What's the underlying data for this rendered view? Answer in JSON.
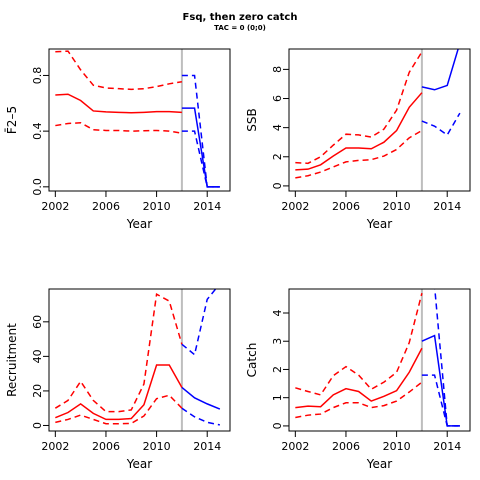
{
  "figure": {
    "title": "Fsq, then zero catch",
    "subtitle": "TAC = 0 (0;0)"
  },
  "colors": {
    "historical": "#ff0000",
    "projection": "#0000ff",
    "divider": "#bebebe"
  },
  "chart_data": [
    {
      "type": "line",
      "id": "fbar",
      "xlabel": "Year",
      "ylabel": "F̄2–5",
      "xlim": [
        2001.5,
        2015.8
      ],
      "ylim": [
        -0.03,
        0.99
      ],
      "xticks": [
        2002,
        2006,
        2010,
        2014
      ],
      "yticks": [
        0.0,
        0.4,
        0.8
      ],
      "ytick_labels": [
        "0.0",
        "0.4",
        "0.8"
      ],
      "divider_x": 2012,
      "series": [
        {
          "role": "historical-median",
          "x": [
            2002,
            2003,
            2004,
            2005,
            2006,
            2007,
            2008,
            2009,
            2010,
            2011,
            2012
          ],
          "values": [
            0.66,
            0.665,
            0.62,
            0.545,
            0.538,
            0.535,
            0.532,
            0.535,
            0.54,
            0.54,
            0.535
          ]
        },
        {
          "role": "historical-upper",
          "x": [
            2002,
            2003,
            2004,
            2005,
            2006,
            2007,
            2008,
            2009,
            2010,
            2011,
            2012
          ],
          "values": [
            0.97,
            0.975,
            0.84,
            0.73,
            0.71,
            0.705,
            0.7,
            0.705,
            0.72,
            0.74,
            0.755
          ]
        },
        {
          "role": "historical-lower",
          "x": [
            2002,
            2003,
            2004,
            2005,
            2006,
            2007,
            2008,
            2009,
            2010,
            2011,
            2012
          ],
          "values": [
            0.44,
            0.455,
            0.46,
            0.41,
            0.405,
            0.405,
            0.4,
            0.403,
            0.405,
            0.4,
            0.385
          ]
        },
        {
          "role": "projection-median",
          "x": [
            2012,
            2013,
            2014,
            2015
          ],
          "values": [
            0.565,
            0.565,
            0.0,
            0.0
          ]
        },
        {
          "role": "projection-upper",
          "x": [
            2012,
            2013,
            2014,
            2015
          ],
          "values": [
            0.8,
            0.8,
            0.0,
            0.0
          ]
        },
        {
          "role": "projection-lower",
          "x": [
            2012,
            2013,
            2014,
            2015
          ],
          "values": [
            0.4,
            0.4,
            0.0,
            0.0
          ]
        }
      ]
    },
    {
      "type": "line",
      "id": "ssb",
      "xlabel": "Year",
      "ylabel": "SSB",
      "xlim": [
        2001.5,
        2015.8
      ],
      "ylim": [
        -0.35,
        9.4
      ],
      "xticks": [
        2002,
        2006,
        2010,
        2014
      ],
      "yticks": [
        0,
        2,
        4,
        6,
        8
      ],
      "ytick_labels": [
        "0",
        "2",
        "4",
        "6",
        "8"
      ],
      "divider_x": 2012,
      "series": [
        {
          "role": "historical-median",
          "x": [
            2002,
            2003,
            2004,
            2005,
            2006,
            2007,
            2008,
            2009,
            2010,
            2011,
            2012
          ],
          "values": [
            1.1,
            1.15,
            1.45,
            2.05,
            2.6,
            2.6,
            2.55,
            3.0,
            3.8,
            5.4,
            6.4
          ]
        },
        {
          "role": "historical-upper",
          "x": [
            2002,
            2003,
            2004,
            2005,
            2006,
            2007,
            2008,
            2009,
            2010,
            2011,
            2012
          ],
          "values": [
            1.6,
            1.55,
            2.0,
            2.8,
            3.55,
            3.5,
            3.35,
            3.9,
            5.2,
            7.8,
            9.2
          ]
        },
        {
          "role": "historical-lower",
          "x": [
            2002,
            2003,
            2004,
            2005,
            2006,
            2007,
            2008,
            2009,
            2010,
            2011,
            2012
          ],
          "values": [
            0.55,
            0.7,
            0.95,
            1.3,
            1.65,
            1.75,
            1.8,
            2.05,
            2.5,
            3.3,
            3.8
          ]
        },
        {
          "role": "projection-median",
          "x": [
            2012,
            2013,
            2014,
            2015
          ],
          "values": [
            6.8,
            6.6,
            6.9,
            9.8
          ]
        },
        {
          "role": "projection-upper",
          "x": [
            2012,
            2013,
            2014,
            2015
          ],
          "values": [
            9.8,
            9.8,
            9.8,
            9.8
          ]
        },
        {
          "role": "projection-lower",
          "x": [
            2012,
            2013,
            2014,
            2015
          ],
          "values": [
            4.45,
            4.1,
            3.5,
            5.0
          ]
        }
      ]
    },
    {
      "type": "line",
      "id": "recruitment",
      "xlabel": "Year",
      "ylabel": "Recruitment",
      "xlim": [
        2001.5,
        2015.8
      ],
      "ylim": [
        -3.2,
        79
      ],
      "xticks": [
        2002,
        2006,
        2010,
        2014
      ],
      "yticks": [
        0,
        20,
        40,
        60
      ],
      "ytick_labels": [
        "0",
        "20",
        "40",
        "60"
      ],
      "divider_x": 2012,
      "series": [
        {
          "role": "historical-median",
          "x": [
            2002,
            2003,
            2004,
            2005,
            2006,
            2007,
            2008,
            2009,
            2010,
            2011,
            2012
          ],
          "values": [
            4.5,
            7.5,
            12.5,
            7.0,
            3.5,
            3.5,
            4.0,
            12.0,
            35.0,
            35.0,
            22.0
          ]
        },
        {
          "role": "historical-upper",
          "x": [
            2002,
            2003,
            2004,
            2005,
            2006,
            2007,
            2008,
            2009,
            2010,
            2011,
            2012
          ],
          "values": [
            10.0,
            14.5,
            25.5,
            14.5,
            8.0,
            8.0,
            9.0,
            24.0,
            76.0,
            72.0,
            47.0
          ]
        },
        {
          "role": "historical-lower",
          "x": [
            2002,
            2003,
            2004,
            2005,
            2006,
            2007,
            2008,
            2009,
            2010,
            2011,
            2012
          ],
          "values": [
            1.8,
            3.5,
            6.0,
            3.5,
            1.0,
            1.0,
            1.2,
            5.5,
            15.5,
            17.5,
            10.0
          ]
        },
        {
          "role": "projection-median",
          "x": [
            2012,
            2013,
            2014,
            2015
          ],
          "values": [
            22.0,
            16.0,
            12.5,
            9.5
          ]
        },
        {
          "role": "projection-upper",
          "x": [
            2012,
            2013,
            2014,
            2015
          ],
          "values": [
            47.0,
            41.0,
            73.0,
            82.0
          ]
        },
        {
          "role": "projection-lower",
          "x": [
            2012,
            2013,
            2014,
            2015
          ],
          "values": [
            10.0,
            5.0,
            1.8,
            0.3
          ]
        }
      ]
    },
    {
      "type": "line",
      "id": "catch",
      "xlabel": "Year",
      "ylabel": "Catch",
      "xlim": [
        2001.5,
        2015.8
      ],
      "ylim": [
        -0.18,
        4.85
      ],
      "xticks": [
        2002,
        2006,
        2010,
        2014
      ],
      "yticks": [
        0,
        1,
        2,
        3,
        4
      ],
      "ytick_labels": [
        "0",
        "1",
        "2",
        "3",
        "4"
      ],
      "divider_x": 2012,
      "series": [
        {
          "role": "historical-median",
          "x": [
            2002,
            2003,
            2004,
            2005,
            2006,
            2007,
            2008,
            2009,
            2010,
            2011,
            2012
          ],
          "values": [
            0.65,
            0.7,
            0.68,
            1.1,
            1.32,
            1.22,
            0.88,
            1.05,
            1.25,
            1.9,
            2.75
          ]
        },
        {
          "role": "historical-upper",
          "x": [
            2002,
            2003,
            2004,
            2005,
            2006,
            2007,
            2008,
            2009,
            2010,
            2011,
            2012
          ],
          "values": [
            1.35,
            1.22,
            1.1,
            1.78,
            2.1,
            1.8,
            1.3,
            1.55,
            1.9,
            2.95,
            4.7
          ]
        },
        {
          "role": "historical-lower",
          "x": [
            2002,
            2003,
            2004,
            2005,
            2006,
            2007,
            2008,
            2009,
            2010,
            2011,
            2012
          ],
          "values": [
            0.3,
            0.38,
            0.42,
            0.65,
            0.82,
            0.82,
            0.65,
            0.72,
            0.88,
            1.2,
            1.55
          ]
        },
        {
          "role": "projection-median",
          "x": [
            2012,
            2013,
            2014,
            2015
          ],
          "values": [
            3.0,
            3.2,
            0.0,
            0.0
          ]
        },
        {
          "role": "projection-upper",
          "x": [
            2012,
            2013,
            2014,
            2015
          ],
          "values": [
            4.95,
            4.95,
            0.0,
            0.0
          ]
        },
        {
          "role": "projection-lower",
          "x": [
            2012,
            2013,
            2014,
            2015
          ],
          "values": [
            1.8,
            1.8,
            0.0,
            0.0
          ]
        }
      ]
    }
  ]
}
